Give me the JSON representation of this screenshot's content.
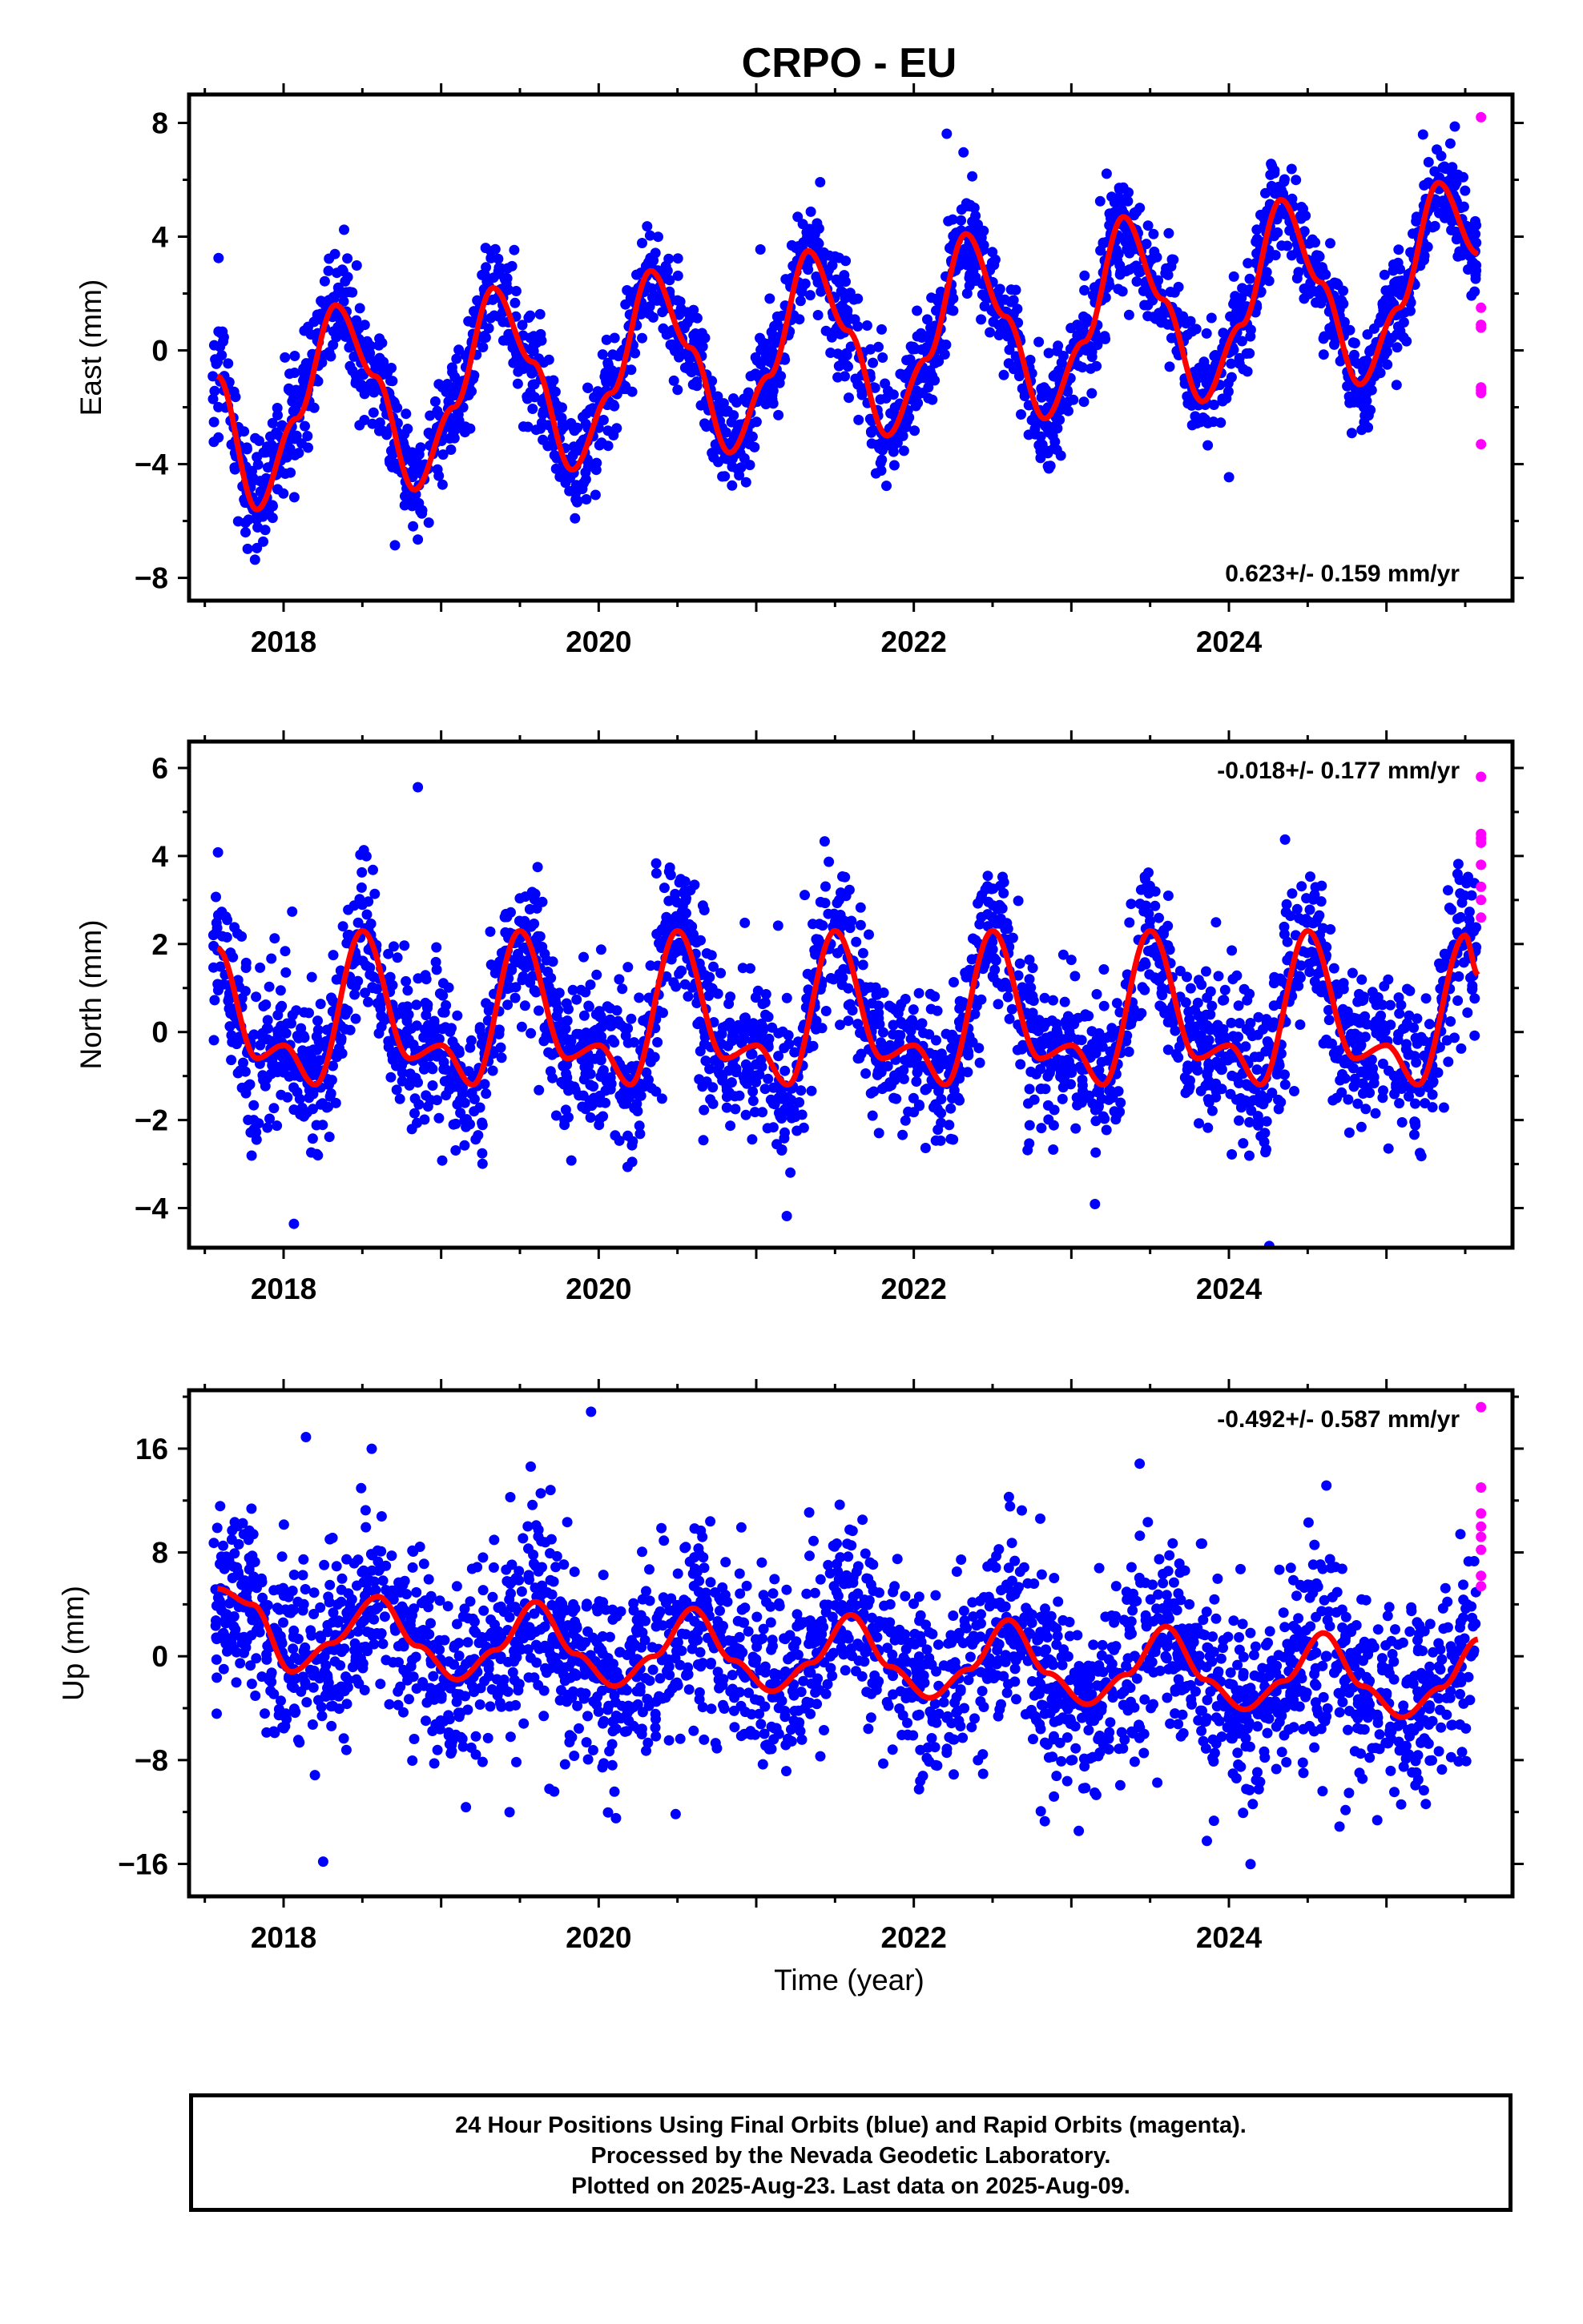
{
  "title": "CRPO - EU",
  "x_axis_label": "Time (year)",
  "caption": [
    "24 Hour Positions Using Final Orbits (blue) and Rapid Orbits (magenta).",
    "Processed by the Nevada Geodetic Laboratory.",
    "Plotted on 2025-Aug-23. Last data on 2025-Aug-09."
  ],
  "colors": {
    "final_orbits": "#0000ff",
    "rapid_orbits": "#ff00ff",
    "model_fit": "#ff0000",
    "axes": "#000000"
  },
  "chart_data": [
    {
      "type": "scatter",
      "component": "East",
      "ylabel": "East (mm)",
      "xlim": [
        2017.4,
        2025.8
      ],
      "ylim": [
        -8.8,
        9.0
      ],
      "x_ticks": [
        2018,
        2020,
        2022,
        2024
      ],
      "x_tick_labels": [
        "2018",
        "2020",
        "2022",
        "2024"
      ],
      "y_ticks": [
        -8,
        -4,
        0,
        4,
        8
      ],
      "y_tick_labels": [
        "−8",
        "−4",
        "0",
        "4",
        "8"
      ],
      "rate_label": "0.623+/- 0.159 mm/yr",
      "rate_label_position": "bottom-right",
      "fit": {
        "x": [
          2017.58,
          2017.83,
          2018.08,
          2018.33,
          2018.58,
          2018.83,
          2019.08,
          2019.33,
          2019.58,
          2019.83,
          2020.08,
          2020.33,
          2020.58,
          2020.83,
          2021.08,
          2021.33,
          2021.58,
          2021.83,
          2022.08,
          2022.33,
          2022.58,
          2022.83,
          2023.08,
          2023.33,
          2023.58,
          2023.83,
          2024.08,
          2024.33,
          2024.58,
          2024.83,
          2025.08,
          2025.33,
          2025.58
        ],
        "y": [
          -0.9,
          -5.6,
          -2.4,
          1.6,
          -0.9,
          -4.9,
          -2.0,
          2.2,
          -0.4,
          -4.2,
          -1.5,
          2.8,
          0.1,
          -3.6,
          -0.9,
          3.5,
          0.7,
          -3.0,
          -0.3,
          4.1,
          1.2,
          -2.4,
          0.3,
          4.7,
          1.8,
          -1.8,
          0.9,
          5.3,
          2.4,
          -1.2,
          1.5,
          5.9,
          3.4
        ]
      },
      "final_orbits": {
        "start": 2017.55,
        "end": 2025.57,
        "count": 2600,
        "period_yr": 1.0,
        "peak_yr": 2018.43,
        "amplitude": 3.65,
        "baseline": -1.55,
        "rate_mm_yr": 0.623,
        "noise_sd": 0.9,
        "seed": 11
      },
      "rapid_orbits": {
        "x": [
          2025.6,
          2025.6,
          2025.6,
          2025.6,
          2025.6,
          2025.6,
          2025.6,
          2025.6
        ],
        "y": [
          8.2,
          1.5,
          0.8,
          -1.3,
          -1.5,
          -3.3,
          0.9,
          -1.4
        ]
      }
    },
    {
      "type": "scatter",
      "component": "North",
      "ylabel": "North (mm)",
      "xlim": [
        2017.4,
        2025.8
      ],
      "ylim": [
        -4.9,
        6.6
      ],
      "x_ticks": [
        2018,
        2020,
        2022,
        2024
      ],
      "x_tick_labels": [
        "2018",
        "2020",
        "2022",
        "2024"
      ],
      "y_ticks": [
        -4,
        -2,
        0,
        2,
        4,
        6
      ],
      "y_tick_labels": [
        "−4",
        "−2",
        "0",
        "2",
        "4",
        "6"
      ],
      "rate_label": "-0.018+/- 0.177 mm/yr",
      "rate_label_position": "top-right",
      "fit": {
        "x": [
          2017.58,
          2017.83,
          2018.0,
          2018.2,
          2018.5,
          2018.8,
          2019.0,
          2019.2,
          2019.5,
          2019.8,
          2020.0,
          2020.2,
          2020.5,
          2020.8,
          2021.0,
          2021.2,
          2021.5,
          2021.8,
          2022.0,
          2022.2,
          2022.5,
          2022.8,
          2023.0,
          2023.2,
          2023.5,
          2023.8,
          2024.0,
          2024.2,
          2024.5,
          2024.8,
          2025.0,
          2025.2,
          2025.5,
          2025.58
        ],
        "y": [
          1.9,
          -0.6,
          -0.3,
          -1.2,
          2.3,
          -0.6,
          -0.3,
          -1.2,
          2.3,
          -0.6,
          -0.3,
          -1.2,
          2.3,
          -0.6,
          -0.3,
          -1.2,
          2.3,
          -0.6,
          -0.3,
          -1.2,
          2.3,
          -0.6,
          -0.3,
          -1.2,
          2.3,
          -0.6,
          -0.3,
          -1.2,
          2.3,
          -0.6,
          -0.3,
          -1.2,
          2.2,
          1.3
        ]
      },
      "final_orbits": {
        "start": 2017.55,
        "end": 2025.57,
        "count": 2500,
        "period_yr": 1.0,
        "peak_yr": 2018.5,
        "amplitude": 1.6,
        "baseline": 0.3,
        "rate_mm_yr": -0.018,
        "noise_sd": 0.85,
        "seed": 23
      },
      "rapid_orbits": {
        "x": [
          2025.6,
          2025.6,
          2025.6,
          2025.6,
          2025.6,
          2025.6,
          2025.6,
          2025.6
        ],
        "y": [
          5.8,
          4.5,
          4.3,
          3.8,
          3.3,
          3.0,
          2.6,
          4.4
        ]
      }
    },
    {
      "type": "scatter",
      "component": "Up",
      "ylabel": "Up (mm)",
      "xlim": [
        2017.4,
        2025.8
      ],
      "ylim": [
        -18.5,
        20.5
      ],
      "x_ticks": [
        2018,
        2020,
        2022,
        2024
      ],
      "x_tick_labels": [
        "2018",
        "2020",
        "2022",
        "2024"
      ],
      "y_ticks": [
        -16,
        -8,
        0,
        8,
        16
      ],
      "y_tick_labels": [
        "−16",
        "−8",
        "0",
        "8",
        "16"
      ],
      "rate_label": "-0.492+/- 0.587 mm/yr",
      "rate_label_position": "top-right",
      "fit": {
        "x": [
          2017.58,
          2017.8,
          2018.05,
          2018.3,
          2018.6,
          2018.85,
          2019.1,
          2019.35,
          2019.6,
          2019.85,
          2020.1,
          2020.35,
          2020.6,
          2020.85,
          2021.1,
          2021.35,
          2021.6,
          2021.85,
          2022.1,
          2022.35,
          2022.6,
          2022.85,
          2023.1,
          2023.35,
          2023.6,
          2023.85,
          2024.1,
          2024.35,
          2024.6,
          2024.85,
          2025.1,
          2025.35,
          2025.58
        ],
        "y": [
          5.2,
          4.0,
          -1.2,
          1.0,
          4.6,
          0.8,
          -1.8,
          0.5,
          4.2,
          0.2,
          -2.3,
          0.0,
          3.7,
          -0.3,
          -2.7,
          -0.5,
          3.2,
          -0.8,
          -3.2,
          -1.0,
          2.8,
          -1.3,
          -3.7,
          -1.4,
          2.3,
          -1.8,
          -4.1,
          -1.9,
          1.8,
          -2.3,
          -4.7,
          -2.4,
          1.3
        ]
      },
      "final_orbits": {
        "start": 2017.55,
        "end": 2025.57,
        "count": 2600,
        "period_yr": 1.0,
        "peak_yr": 2018.6,
        "amplitude": 3.3,
        "baseline": 1.2,
        "rate_mm_yr": -0.492,
        "noise_sd": 3.6,
        "seed": 37
      },
      "rapid_orbits": {
        "x": [
          2025.6,
          2025.6,
          2025.6,
          2025.6,
          2025.6,
          2025.6,
          2025.6,
          2025.6
        ],
        "y": [
          19.2,
          13.0,
          11.0,
          10.0,
          9.2,
          8.2,
          6.2,
          5.4
        ]
      }
    }
  ]
}
